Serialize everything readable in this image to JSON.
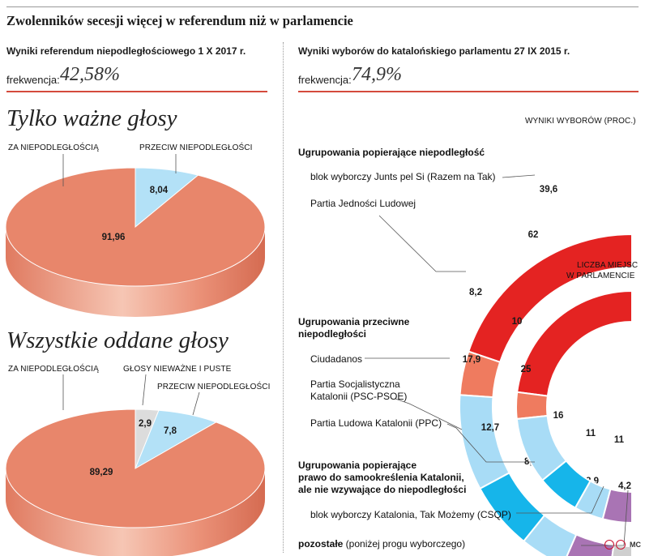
{
  "title": "Zwolenników secesji więcej w referendum niż w parlamencie",
  "left": {
    "subtitle": "Wyniki referendum niepodległościowego 1 X 2017 r.",
    "turnout_label": "frekwencja:",
    "turnout_value": "42,58%"
  },
  "right": {
    "subtitle": "Wyniki wyborów do katalońskiego parlamentu 27 IX 2015 r.",
    "turnout_label": "frekwencja:",
    "turnout_value": "74,9%",
    "outer_ring_label": "WYNIKI WYBORÓW (PROC.)",
    "inner_ring_label_1": "LICZBA MIEJSC",
    "inner_ring_label_2": "W PARLAMENCIE",
    "groups": {
      "pro": "Ugrupowania popierające niepodległość",
      "against_1": "Ugrupowania przeciwne",
      "against_2": "niepodległości",
      "third_1": "Ugrupowania popierające",
      "third_2": "prawo do samookreślenia Katalonii,",
      "third_3": "ale nie wzywające do niepodległości",
      "other_bold": "pozostałe",
      "other_rest": " (poniżej progu wyborczego)"
    },
    "party_labels": {
      "jxsi": "blok wyborczy Junts pel Si (Razem na Tak)",
      "cup": "Partia Jedności Ludowej",
      "cs": "Ciudadanos",
      "psc_1": "Partia Socjalistyczna",
      "psc_2": "Katalonii (PSC-PSOE)",
      "ppc": "Partia Ludowa Katalonii (PPC)",
      "csqp": "blok wyborczy Katalonia, Tak Możemy (CSQP)"
    }
  },
  "section_valid": "Tylko ważne głosy",
  "section_all": "Wszystkie oddane głosy",
  "pie_labels": {
    "yes": "ZA NIEPODLEGŁOŚCIĄ",
    "no": "PRZECIW NIEPODLEGŁOŚCI",
    "invalid": "GŁOSY NIEWAŻNE I PUSTE"
  },
  "credit": "MC",
  "colors": {
    "yes": "#e8866b",
    "no": "#b3e1f7",
    "invalid": "#dcdcdc",
    "red": "#e42322",
    "salmon": "#ef7b5f",
    "lightblue": "#a8dcf6",
    "cyan": "#16b5ea",
    "purple": "#a974b4",
    "grey": "#cfcfcf"
  },
  "chart_data": [
    {
      "type": "pie",
      "title": "Tylko ważne głosy",
      "categories": [
        "ZA NIEPODLEGŁOŚCIĄ",
        "PRZECIW NIEPODLEGŁOŚCI"
      ],
      "values": [
        91.96,
        8.04
      ],
      "value_labels": [
        "91,96",
        "8,04"
      ]
    },
    {
      "type": "pie",
      "title": "Wszystkie oddane głosy",
      "categories": [
        "ZA NIEPODLEGŁOŚCIĄ",
        "GŁOSY NIEWAŻNE I PUSTE",
        "PRZECIW NIEPODLEGŁOŚCI"
      ],
      "values": [
        89.29,
        2.9,
        7.8
      ],
      "value_labels": [
        "89,29",
        "2,9",
        "7,8"
      ]
    },
    {
      "type": "pie",
      "title": "WYNIKI WYBORÓW (PROC.)",
      "categories": [
        "Junts pel Si",
        "Partia Jedności Ludowej",
        "Ciudadanos",
        "PSC-PSOE",
        "PPC",
        "CSQP",
        "pozostałe"
      ],
      "values": [
        39.6,
        8.2,
        17.9,
        12.7,
        8.5,
        8.9,
        4.2
      ],
      "value_labels": [
        "39,6",
        "8,2",
        "17,9",
        "12,7",
        "8,5",
        "8,9",
        "4,2"
      ]
    },
    {
      "type": "pie",
      "title": "LICZBA MIEJSC W PARLAMENCIE",
      "categories": [
        "Junts pel Si",
        "Partia Jedności Ludowej",
        "Ciudadanos",
        "PSC-PSOE",
        "PPC",
        "CSQP"
      ],
      "values": [
        62,
        10,
        25,
        16,
        11,
        11
      ],
      "value_labels": [
        "62",
        "10",
        "25",
        "16",
        "11",
        "11"
      ]
    }
  ]
}
